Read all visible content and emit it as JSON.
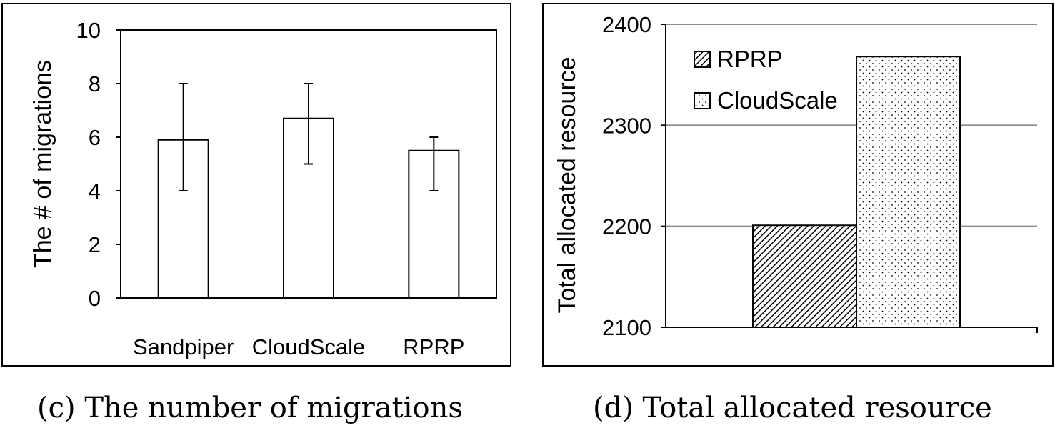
{
  "chart_data": [
    {
      "type": "bar",
      "caption": "(c) The number of migrations",
      "ylabel": "The # of migrations",
      "xlabel": "",
      "categories": [
        "Sandpiper",
        "CloudScale",
        "RPRP"
      ],
      "values": [
        5.9,
        6.7,
        5.5
      ],
      "error_bars": [
        [
          4,
          8
        ],
        [
          5,
          8
        ],
        [
          4,
          6
        ]
      ],
      "ylim": [
        0,
        10
      ],
      "yticks": [
        0,
        2,
        4,
        6,
        8,
        10
      ],
      "grid": false,
      "legend": "none"
    },
    {
      "type": "bar",
      "caption": "(d) Total allocated resource",
      "ylabel": "Total allocated resource",
      "xlabel": "",
      "series": [
        {
          "name": "RPRP",
          "values": [
            2201
          ],
          "pattern": "hatch"
        },
        {
          "name": "CloudScale",
          "values": [
            2368
          ],
          "pattern": "dots"
        }
      ],
      "ylim": [
        2100,
        2400
      ],
      "yticks": [
        2100,
        2200,
        2300,
        2400
      ],
      "grid": true,
      "legend": "top-left"
    }
  ]
}
